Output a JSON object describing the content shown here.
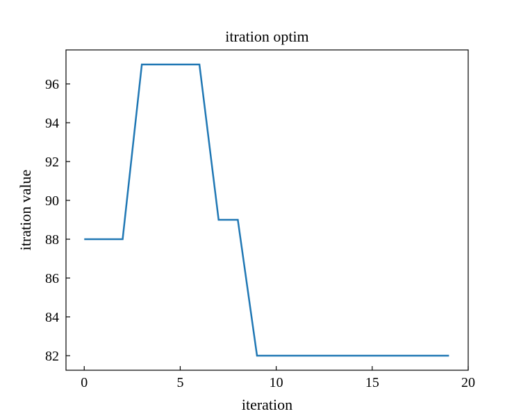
{
  "chart_data": {
    "type": "line",
    "title": "itration optim",
    "xlabel": "iteration",
    "ylabel": "itration value",
    "x": [
      0,
      1,
      2,
      3,
      4,
      5,
      6,
      7,
      8,
      9,
      10,
      11,
      12,
      13,
      14,
      15,
      16,
      17,
      18,
      19
    ],
    "series": [
      {
        "values": [
          88,
          88,
          88,
          97,
          97,
          97,
          97,
          89,
          89,
          82,
          82,
          82,
          82,
          82,
          82,
          82,
          82,
          82,
          82,
          82
        ],
        "color": "#1f77b4"
      }
    ],
    "xlim": [
      -0.95,
      20
    ],
    "ylim": [
      81.25,
      97.75
    ],
    "xticks": [
      0,
      5,
      10,
      15,
      20
    ],
    "yticks": [
      82,
      84,
      86,
      88,
      90,
      92,
      94,
      96
    ],
    "grid": false,
    "tick_direction": "in"
  }
}
